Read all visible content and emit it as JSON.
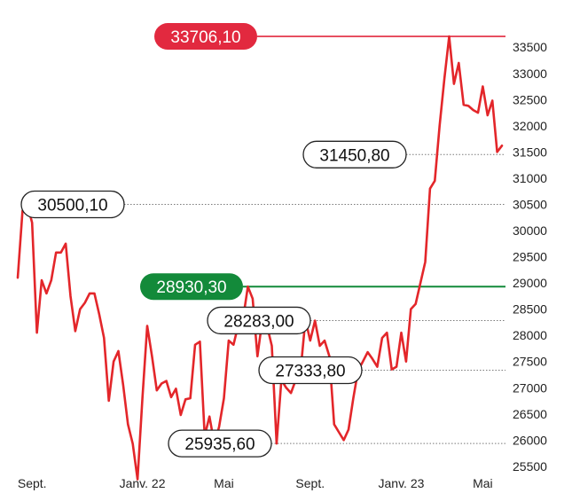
{
  "chart_data": {
    "type": "line",
    "title": "",
    "xlabel": "",
    "ylabel": "",
    "ylim": [
      25200,
      33900
    ],
    "y_ticks": [
      25500,
      26000,
      26500,
      27000,
      27500,
      28000,
      28500,
      29000,
      29500,
      30000,
      30500,
      31000,
      31500,
      32000,
      32500,
      33000,
      33500
    ],
    "y_tick_labels": [
      "25500",
      "26000",
      "26500",
      "27000",
      "27500",
      "28000",
      "28500",
      "29000",
      "29500",
      "30000",
      "30500",
      "31000",
      "31500",
      "32000",
      "32500",
      "33000",
      "33500"
    ],
    "x_ticks": [
      {
        "label": "Sept.",
        "index": 3
      },
      {
        "label": "Janv. 22",
        "index": 26
      },
      {
        "label": "Mai",
        "index": 43
      },
      {
        "label": "Sept.",
        "index": 61
      },
      {
        "label": "Janv. 23",
        "index": 80
      },
      {
        "label": "Mai",
        "index": 97
      }
    ],
    "line_color": "#e3262a",
    "series": [
      {
        "values": [
          29100,
          30380,
          30500,
          30150,
          28050,
          29050,
          28800,
          29050,
          29580,
          29580,
          29750,
          28750,
          28080,
          28500,
          28620,
          28800,
          28800,
          28400,
          27950,
          26750,
          27500,
          27700,
          27050,
          26300,
          25930,
          25250,
          26800,
          28180,
          27600,
          26950,
          27080,
          27130,
          26820,
          26980,
          26480,
          26780,
          26800,
          27820,
          27880,
          26080,
          26450,
          25935,
          26250,
          26800,
          27900,
          27820,
          28200,
          28320,
          28930,
          28700,
          27600,
          28283,
          28180,
          27800,
          25935,
          27150,
          27000,
          26900,
          27150,
          27333,
          28300,
          27900,
          28280,
          27800,
          27900,
          27600,
          26300,
          26150,
          26000,
          26200,
          26800,
          27333,
          27500,
          27680,
          27550,
          27400,
          27950,
          28050,
          27350,
          27400,
          28050,
          27500,
          28500,
          28600,
          29000,
          29400,
          30800,
          30950,
          32000,
          32900,
          33706,
          32800,
          33200,
          32400,
          32380,
          32300,
          32250,
          32750,
          32200,
          32480,
          31500,
          31620
        ]
      }
    ],
    "reference_lines": [
      {
        "value": 33706.1,
        "label": "33706,10",
        "color": "#e2293f",
        "style": "solid",
        "pill": "filled"
      },
      {
        "value": 28930.3,
        "label": "28930,30",
        "color": "#138a3a",
        "style": "solid",
        "pill": "filled"
      },
      {
        "value": 31450.8,
        "label": "31450,80",
        "color": "#7a7a7a",
        "style": "dotted",
        "pill": "outline"
      },
      {
        "value": 30500.1,
        "label": "30500,10",
        "color": "#7a7a7a",
        "style": "dotted",
        "pill": "outline"
      },
      {
        "value": 28283.0,
        "label": "28283,00",
        "color": "#7a7a7a",
        "style": "dotted",
        "pill": "outline"
      },
      {
        "value": 27333.8,
        "label": "27333,80",
        "color": "#7a7a7a",
        "style": "dotted",
        "pill": "outline"
      },
      {
        "value": 25935.6,
        "label": "25935,60",
        "color": "#7a7a7a",
        "style": "dotted",
        "pill": "outline"
      }
    ],
    "grid": false,
    "legend": "none"
  }
}
